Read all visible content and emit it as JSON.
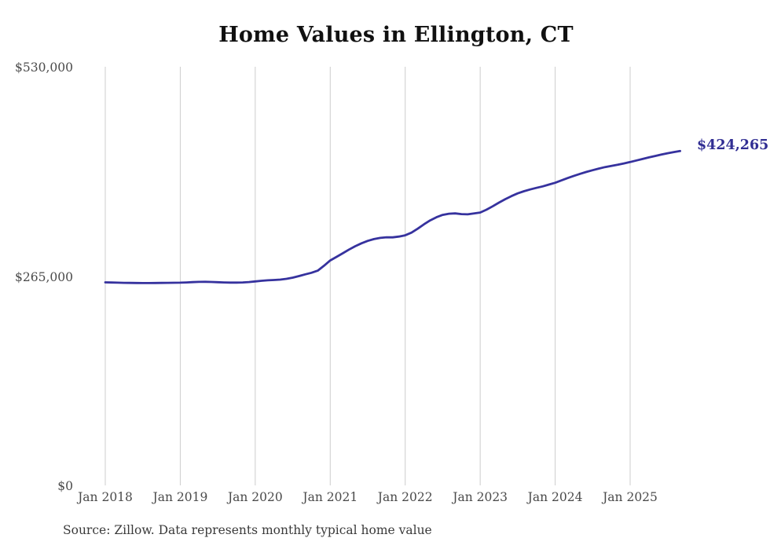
{
  "title": "Home Values in Ellington, CT",
  "source_note": "Source: Zillow. Data represents monthly typical home value",
  "latest_value_label": "$424,265",
  "colors": {
    "line": "#36329e",
    "latest_label": "#312e93",
    "grid": "#cccccc",
    "axis_text": "#4a4a4a",
    "title_text": "#111111",
    "source_text": "#3a3a3a"
  },
  "chart_data": {
    "type": "line",
    "title": "Home Values in Ellington, CT",
    "x_unit": "month",
    "x_start": "Jan 2018",
    "x_end": "Sep 2025",
    "x_tick_labels": [
      "Jan 2018",
      "Jan 2019",
      "Jan 2020",
      "Jan 2021",
      "Jan 2022",
      "Jan 2023",
      "Jan 2024",
      "Jan 2025"
    ],
    "y_tick_labels": [
      "$0",
      "$265,000",
      "$530,000"
    ],
    "y_tick_values": [
      0,
      265000,
      530000
    ],
    "ylim": [
      0,
      530000
    ],
    "grid": "vertical-only",
    "legend": "none",
    "latest_value": 424265,
    "series": [
      {
        "name": "Monthly typical home value",
        "values": [
          258000,
          257800,
          257600,
          257400,
          257300,
          257200,
          257100,
          257100,
          257200,
          257300,
          257400,
          257500,
          257600,
          257900,
          258300,
          258600,
          258700,
          258500,
          258200,
          257900,
          257700,
          257700,
          257900,
          258400,
          259200,
          260000,
          260600,
          261000,
          261500,
          262500,
          264000,
          266000,
          268200,
          270200,
          272900,
          279000,
          285800,
          290300,
          294800,
          299500,
          303800,
          307500,
          310500,
          312800,
          314300,
          315100,
          315000,
          316000,
          317600,
          321000,
          326000,
          331500,
          336500,
          340500,
          343500,
          344900,
          345300,
          344500,
          344200,
          345200,
          346400,
          350000,
          354300,
          359000,
          363300,
          367200,
          370700,
          373400,
          375700,
          377700,
          379600,
          381800,
          384100,
          387100,
          390100,
          392900,
          395500,
          397800,
          400000,
          402100,
          404000,
          405500,
          406900,
          408600,
          410400,
          412400,
          414300,
          416200,
          418000,
          419800,
          421500,
          423000,
          424265
        ]
      }
    ]
  }
}
